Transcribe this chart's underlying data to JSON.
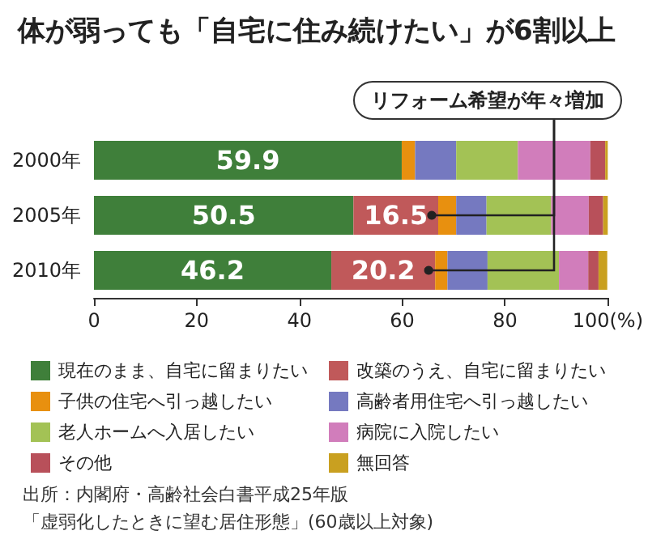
{
  "chart_data": {
    "type": "bar",
    "orientation": "horizontal",
    "stacked": true,
    "title": "体が弱っても「自宅に住み続けたい」が6割以上",
    "categories": [
      "2000年",
      "2005年",
      "2010年"
    ],
    "series": [
      {
        "name": "現在のまま、自宅に留まりたい",
        "color": "#3f7f3a",
        "values": [
          59.9,
          50.5,
          46.2
        ],
        "value_labels": [
          "59.9",
          "50.5",
          "46.2"
        ]
      },
      {
        "name": "改築のうえ、自宅に留まりたい",
        "color": "#c0595a",
        "values": [
          0,
          16.5,
          20.2
        ],
        "value_labels": [
          null,
          "16.5",
          "20.2"
        ]
      },
      {
        "name": "子供の住宅へ引っ越したい",
        "color": "#e8900f",
        "values": [
          2.6,
          3.5,
          2.4
        ]
      },
      {
        "name": "高齢者用住宅へ引っ越したい",
        "color": "#7579c0",
        "values": [
          8.0,
          5.9,
          7.8
        ]
      },
      {
        "name": "老人ホームへ入居したい",
        "color": "#a3c255",
        "values": [
          12.0,
          12.6,
          13.9
        ]
      },
      {
        "name": "病院に入院したい",
        "color": "#d17dbb",
        "values": [
          14.1,
          7.3,
          5.7
        ]
      },
      {
        "name": "その他",
        "color": "#b8505a",
        "values": [
          2.9,
          2.8,
          2.0
        ]
      },
      {
        "name": "無回答",
        "color": "#c9a020",
        "values": [
          0.5,
          0.9,
          1.7
        ]
      }
    ],
    "xlim": [
      0,
      100
    ],
    "xticks": [
      0,
      20,
      40,
      60,
      80,
      {
        "value": 100,
        "label": "100(%)"
      }
    ],
    "grid": false,
    "legend": "bottom",
    "annotations": [
      {
        "text": "リフォーム希望が年々増加",
        "x": 67,
        "y": "2005年"
      },
      "出所：内閣府・高齢社会白書平成25年版",
      "「虚弱化したときに望む居住形態」(60歳以上対象)"
    ]
  }
}
